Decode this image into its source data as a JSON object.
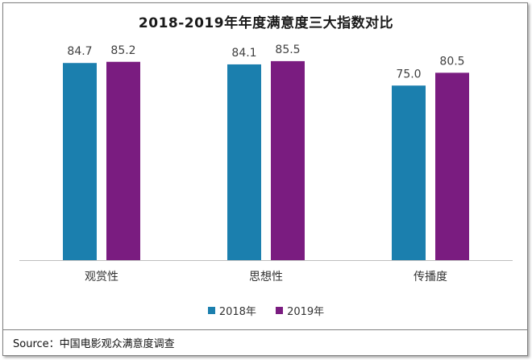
{
  "chart_data": {
    "type": "bar",
    "title": "2018-2019年年度满意度三大指数对比",
    "categories": [
      "观赏性",
      "思想性",
      "传播度"
    ],
    "series": [
      {
        "name": "2018年",
        "values": [
          84.7,
          84.1,
          75.0
        ],
        "labels": [
          "84.7",
          "84.1",
          "75.0"
        ],
        "color": "#1b7fae"
      },
      {
        "name": "2019年",
        "values": [
          85.2,
          85.5,
          80.5
        ],
        "labels": [
          "85.2",
          "85.5",
          "80.5"
        ],
        "color": "#7a1c80"
      }
    ],
    "ylim": [
      0,
      100
    ],
    "grid": false,
    "legend": "bottom"
  },
  "source": "Source：中国电影观众满意度调查"
}
